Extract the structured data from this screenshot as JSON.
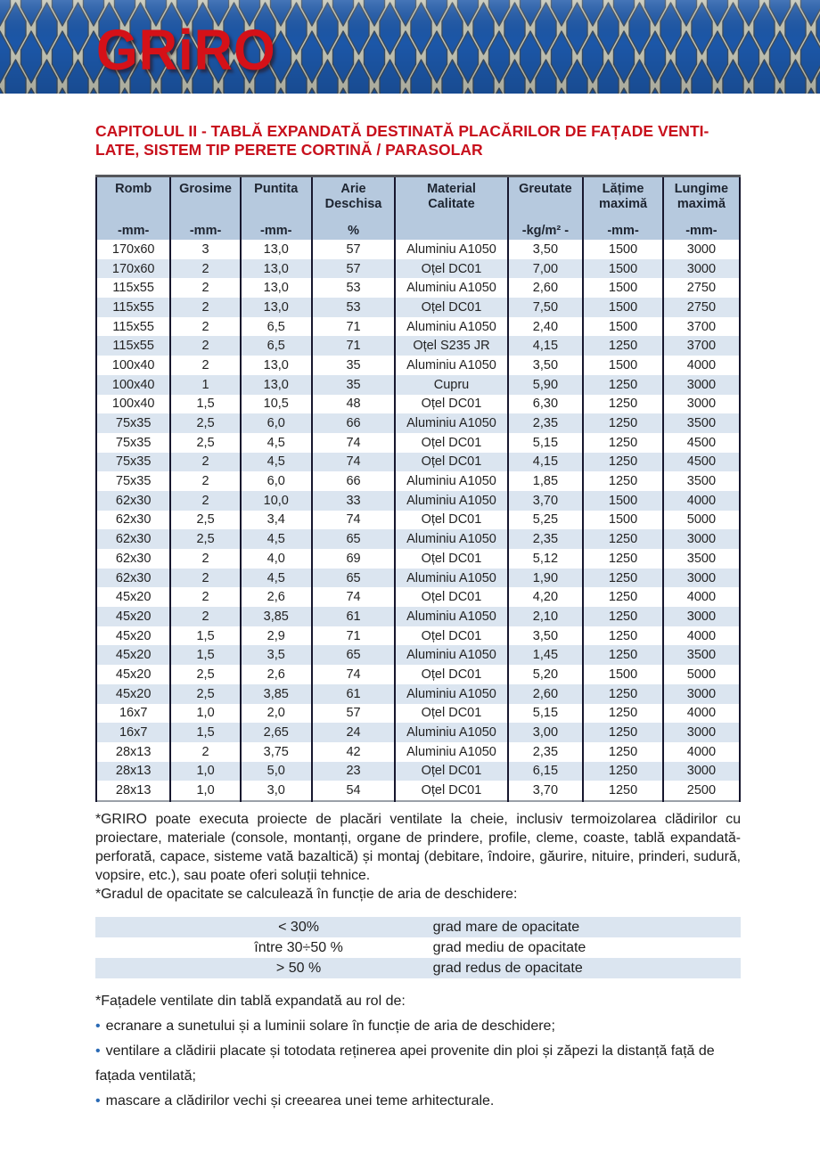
{
  "header": {
    "logo_text": "GRiRO",
    "logo_color": "#d51118",
    "mesh_blue": "#1c57a8",
    "mesh_strand": "#c3c4b4"
  },
  "title": {
    "line1": "CAPITOLUL II - TABLĂ EXPANDATĂ DESTINATĂ PLACĂRILOR DE FAȚADE VENTI-",
    "line2": "LATE, SISTEM TIP PERETE CORTINĂ / PARASOLAR",
    "color": "#c8101c"
  },
  "spec_table": {
    "header_bg": "#b6c9de",
    "stripe_color": "#dbe5f0",
    "col_widths_pct": [
      11.5,
      10.8,
      11.0,
      13.0,
      17.7,
      11.7,
      12.4,
      11.9
    ],
    "columns": [
      {
        "name": "Romb",
        "unit": "-mm-"
      },
      {
        "name": "Grosime",
        "unit": "-mm-"
      },
      {
        "name": "Puntita",
        "unit": "-mm-"
      },
      {
        "name": "Arie\nDeschisa",
        "unit": "%"
      },
      {
        "name": "Material\nCalitate",
        "unit": ""
      },
      {
        "name": "Greutate",
        "unit": "-kg/m² -"
      },
      {
        "name": "Lățime\nmaximă",
        "unit": "-mm-"
      },
      {
        "name": "Lungime\nmaximă",
        "unit": "-mm-"
      }
    ],
    "rows": [
      [
        "170x60",
        "3",
        "13,0",
        "57",
        "Aluminiu A1050",
        "3,50",
        "1500",
        "3000"
      ],
      [
        "170x60",
        "2",
        "13,0",
        "57",
        "Oțel DC01",
        "7,00",
        "1500",
        "3000"
      ],
      [
        "115x55",
        "2",
        "13,0",
        "53",
        "Aluminiu A1050",
        "2,60",
        "1500",
        "2750"
      ],
      [
        "115x55",
        "2",
        "13,0",
        "53",
        "Oțel DC01",
        "7,50",
        "1500",
        "2750"
      ],
      [
        "115x55",
        "2",
        "6,5",
        "71",
        "Aluminiu A1050",
        "2,40",
        "1500",
        "3700"
      ],
      [
        "115x55",
        "2",
        "6,5",
        "71",
        "Oțel S235 JR",
        "4,15",
        "1250",
        "3700"
      ],
      [
        "100x40",
        "2",
        "13,0",
        "35",
        "Aluminiu A1050",
        "3,50",
        "1500",
        "4000"
      ],
      [
        "100x40",
        "1",
        "13,0",
        "35",
        "Cupru",
        "5,90",
        "1250",
        "3000"
      ],
      [
        "100x40",
        "1,5",
        "10,5",
        "48",
        "Oțel DC01",
        "6,30",
        "1250",
        "3000"
      ],
      [
        "75x35",
        "2,5",
        "6,0",
        "66",
        "Aluminiu A1050",
        "2,35",
        "1250",
        "3500"
      ],
      [
        "75x35",
        "2,5",
        "4,5",
        "74",
        "Oțel DC01",
        "5,15",
        "1250",
        "4500"
      ],
      [
        "75x35",
        "2",
        "4,5",
        "74",
        "Oțel DC01",
        "4,15",
        "1250",
        "4500"
      ],
      [
        "75x35",
        "2",
        "6,0",
        "66",
        "Aluminiu A1050",
        "1,85",
        "1250",
        "3500"
      ],
      [
        "62x30",
        "2",
        "10,0",
        "33",
        "Aluminiu A1050",
        "3,70",
        "1500",
        "4000"
      ],
      [
        "62x30",
        "2,5",
        "3,4",
        "74",
        "Oțel DC01",
        "5,25",
        "1500",
        "5000"
      ],
      [
        "62x30",
        "2,5",
        "4,5",
        "65",
        "Aluminiu A1050",
        "2,35",
        "1250",
        "3000"
      ],
      [
        "62x30",
        "2",
        "4,0",
        "69",
        "Oțel DC01",
        "5,12",
        "1250",
        "3500"
      ],
      [
        "62x30",
        "2",
        "4,5",
        "65",
        "Aluminiu A1050",
        "1,90",
        "1250",
        "3000"
      ],
      [
        "45x20",
        "2",
        "2,6",
        "74",
        "Oțel DC01",
        "4,20",
        "1250",
        "4000"
      ],
      [
        "45x20",
        "2",
        "3,85",
        "61",
        "Aluminiu A1050",
        "2,10",
        "1250",
        "3000"
      ],
      [
        "45x20",
        "1,5",
        "2,9",
        "71",
        "Oțel DC01",
        "3,50",
        "1250",
        "4000"
      ],
      [
        "45x20",
        "1,5",
        "3,5",
        "65",
        "Aluminiu A1050",
        "1,45",
        "1250",
        "3500"
      ],
      [
        "45x20",
        "2,5",
        "2,6",
        "74",
        "Oțel DC01",
        "5,20",
        "1500",
        "5000"
      ],
      [
        "45x20",
        "2,5",
        "3,85",
        "61",
        "Aluminiu A1050",
        "2,60",
        "1250",
        "3000"
      ],
      [
        "16x7",
        "1,0",
        "2,0",
        "57",
        "Oțel DC01",
        "5,15",
        "1250",
        "4000"
      ],
      [
        "16x7",
        "1,5",
        "2,65",
        "24",
        "Aluminiu A1050",
        "3,00",
        "1250",
        "3000"
      ],
      [
        "28x13",
        "2",
        "3,75",
        "42",
        "Aluminiu A1050",
        "2,35",
        "1250",
        "4000"
      ],
      [
        "28x13",
        "1,0",
        "5,0",
        "23",
        "Oțel DC01",
        "6,15",
        "1250",
        "3000"
      ],
      [
        "28x13",
        "1,0",
        "3,0",
        "54",
        "Oțel DC01",
        "3,70",
        "1250",
        "2500"
      ]
    ]
  },
  "notes": {
    "paragraph1": "*GRIRO poate executa proiecte de placări ventilate la cheie, inclusiv termoizolarea clădirilor cu proiectare, materiale (console, montanți, organe de prindere, profile, cleme, coaste, tablă expandată-perforată, capace, sisteme vată bazaltică) și montaj (debitare, îndoire, găurire, nituire, prinderi, sudură, vopsire, etc.), sau poate oferi soluții tehnice.",
    "paragraph2": "*Gradul de opacitate se calculează în funcție de aria de deschidere:"
  },
  "opacity_table": {
    "rows": [
      {
        "range": "< 30%",
        "label": "grad mare de opacitate"
      },
      {
        "range": "între 30÷50 %",
        "label": "grad mediu de opacitate"
      },
      {
        "range": "> 50 %",
        "label": "grad redus de opacitate"
      }
    ]
  },
  "roles": {
    "heading": "*Fațadele ventilate din tablă expandată au rol de:",
    "bullet_color": "#2a6ab5",
    "bullets": [
      "ecranare a sunetului și a luminii solare în funcție de aria de deschidere;",
      "ventilare a clădirii placate și totodata reținerea apei provenite din ploi și zăpezi la distanță față de fațada ventilată;",
      "mascare a clădirilor vechi și creearea unei teme arhitecturale."
    ]
  }
}
